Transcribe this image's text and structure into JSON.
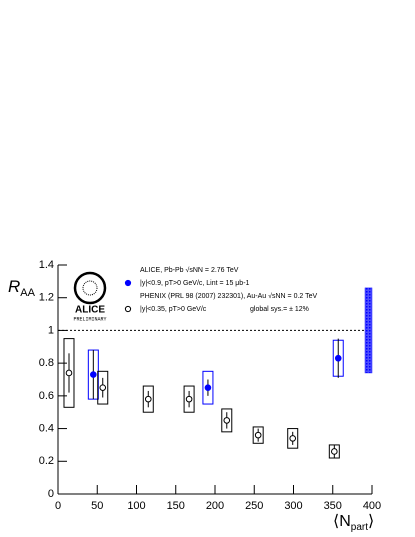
{
  "chart_data": {
    "type": "errorbar",
    "header": "ALICE, Pb-Pb √sNN = 2.76 TeV",
    "phenix_header": "PHENIX (PRL 98 (2007) 232301), Au-Au √sNN = 0.2 TeV",
    "global_note": "global sys.= ± 12%",
    "logo": {
      "text": "ALICE",
      "subtext": "PRELIMINARY"
    },
    "y_label": {
      "main": "R",
      "sub": "AA"
    },
    "x_label": {
      "main": "⟨N",
      "sub": "part",
      "end": "⟩"
    },
    "xlim": [
      0,
      400
    ],
    "xticks": [
      0,
      50,
      100,
      150,
      200,
      250,
      300,
      350,
      400
    ],
    "ylim": [
      0,
      1.4
    ],
    "yticks": [
      0,
      0.2,
      0.4,
      0.6,
      0.8,
      1,
      1.2,
      1.4
    ],
    "reference_line": 1,
    "global_band": {
      "x": 400,
      "low": 0.74,
      "high": 1.26,
      "color": "#1a1aff"
    },
    "series": [
      {
        "name": "|y|<0.9, pT>0 GeV/c, Lint = 15 μb-1",
        "color": "#0000ff",
        "filled": true,
        "x": [
          45,
          191,
          357
        ],
        "values": [
          0.73,
          0.65,
          0.83
        ],
        "stat": [
          0.15,
          0.05,
          0.12
        ],
        "sys": [
          0.15,
          0.1,
          0.11
        ]
      },
      {
        "name": "|y|<0.35, pT>0 GeV/c",
        "color": "#000000",
        "filled": false,
        "x": [
          14,
          57,
          115,
          167,
          215,
          255,
          299,
          352
        ],
        "values": [
          0.74,
          0.65,
          0.58,
          0.58,
          0.45,
          0.36,
          0.34,
          0.26
        ],
        "stat": [
          0.12,
          0.06,
          0.05,
          0.05,
          0.05,
          0.04,
          0.04,
          0.04
        ],
        "sys": [
          0.21,
          0.1,
          0.08,
          0.08,
          0.07,
          0.05,
          0.06,
          0.04
        ]
      }
    ]
  }
}
